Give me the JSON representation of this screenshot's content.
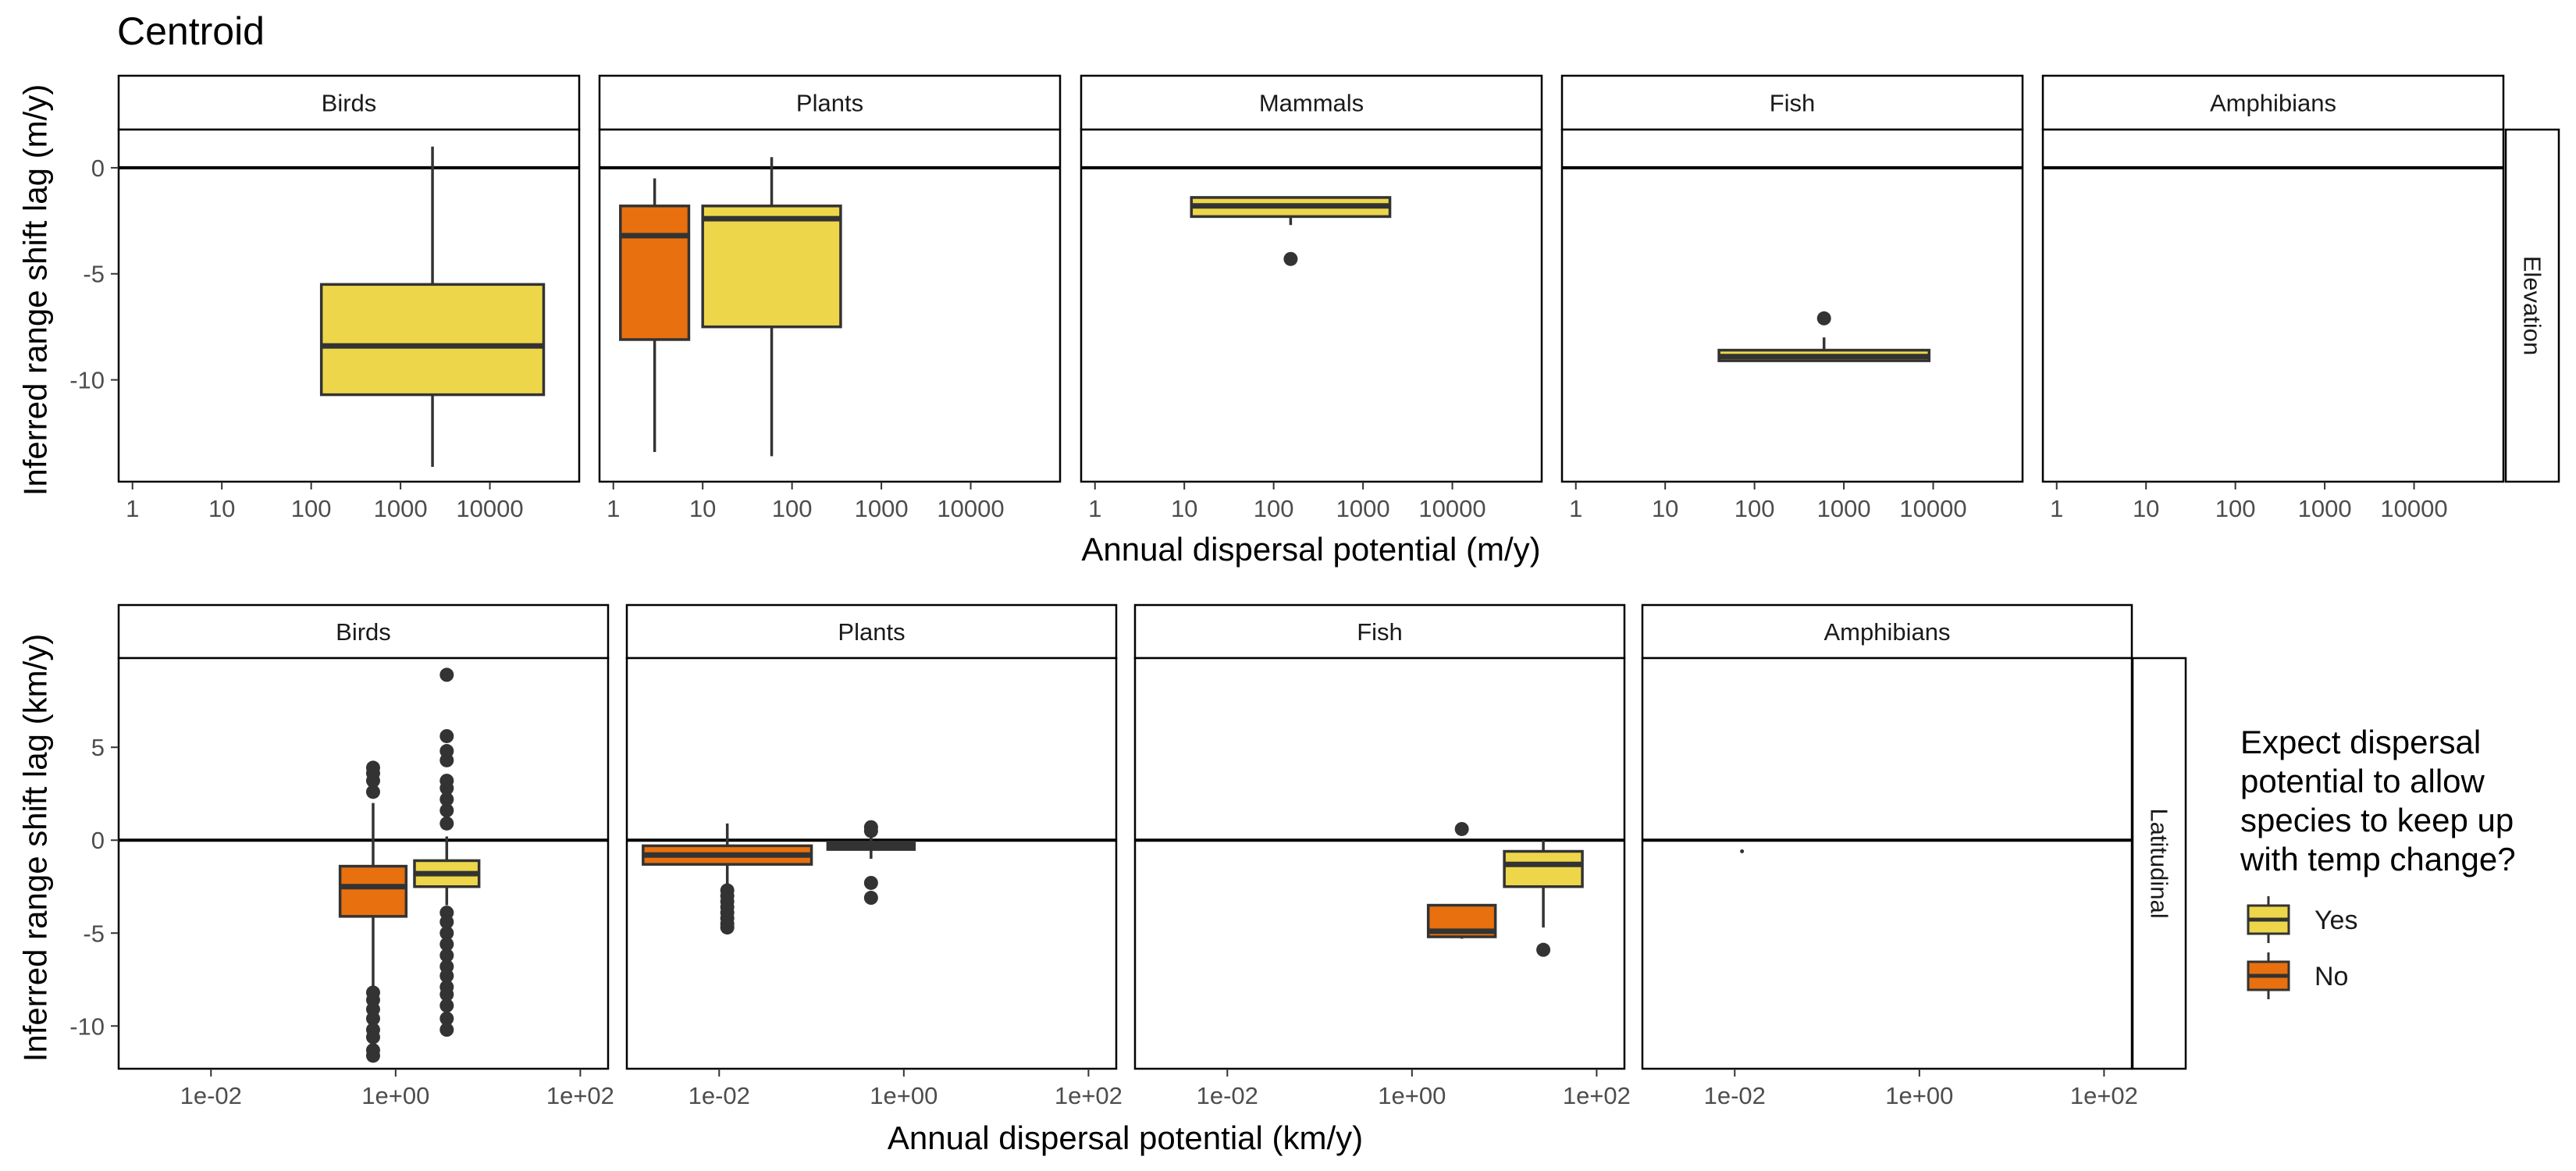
{
  "title": "Centroid",
  "colors": {
    "yes": "#EDD64A",
    "no": "#E8700E",
    "stroke": "#333333",
    "axis": "#000000",
    "tick_text": "#4d4d4d"
  },
  "legend": {
    "title_lines": [
      "Expect dispersal",
      "potential to allow",
      "species to keep up",
      "with temp change?"
    ],
    "items": [
      {
        "label": "Yes",
        "key": "yes"
      },
      {
        "label": "No",
        "key": "no"
      }
    ]
  },
  "chart_data": [
    {
      "type": "box",
      "strip_label": "Elevation",
      "xlabel": "Annual dispersal potential (m/y)",
      "ylabel": "Inferred range shift lag (m/y)",
      "x_scale": "log10",
      "xlim": [
        0.7,
        100000
      ],
      "x_ticks": [
        "1",
        "10",
        "100",
        "1000",
        "10000"
      ],
      "x_tick_values": [
        1,
        10,
        100,
        1000,
        10000
      ],
      "ylim": [
        -14.8,
        1.8
      ],
      "y_ticks": [
        "0",
        "-5",
        "-10"
      ],
      "y_tick_values": [
        0,
        -5,
        -10
      ],
      "reference_line_y": 0,
      "panels": [
        {
          "label": "Birds",
          "boxes": [
            {
              "group": "yes",
              "x_min": 130,
              "x_max": 40000,
              "q1": -10.7,
              "median": -8.4,
              "q3": -5.5,
              "whisker_low": -14.1,
              "whisker_high": 1.0,
              "outliers": []
            }
          ]
        },
        {
          "label": "Plants",
          "boxes": [
            {
              "group": "no",
              "x_min": 1.2,
              "x_max": 7,
              "q1": -8.1,
              "median": -3.2,
              "q3": -1.8,
              "whisker_low": -13.4,
              "whisker_high": -0.5,
              "outliers": []
            },
            {
              "group": "yes",
              "x_min": 10,
              "x_max": 350,
              "q1": -7.5,
              "median": -2.4,
              "q3": -1.8,
              "whisker_low": -13.6,
              "whisker_high": 0.5,
              "outliers": []
            }
          ]
        },
        {
          "label": "Mammals",
          "boxes": [
            {
              "group": "yes",
              "x_min": 12,
              "x_max": 2000,
              "q1": -2.3,
              "median": -1.8,
              "q3": -1.4,
              "whisker_low": -2.7,
              "whisker_high": -1.4,
              "outliers": [
                -4.3
              ]
            }
          ]
        },
        {
          "label": "Fish",
          "boxes": [
            {
              "group": "yes",
              "x_min": 40,
              "x_max": 9000,
              "q1": -9.1,
              "median": -8.9,
              "q3": -8.6,
              "whisker_low": -9.1,
              "whisker_high": -8.0,
              "outliers": [
                -7.1
              ]
            }
          ]
        },
        {
          "label": "Amphibians",
          "boxes": []
        }
      ]
    },
    {
      "type": "box",
      "strip_label": "Latitudinal",
      "xlabel": "Annual dispersal potential (km/y)",
      "ylabel": "Inferred range shift lag (km/y)",
      "x_scale": "log10",
      "xlim": [
        0.001,
        200
      ],
      "x_ticks": [
        "1e-02",
        "1e+00",
        "1e+02"
      ],
      "x_tick_values": [
        0.01,
        1,
        100
      ],
      "ylim": [
        -12.3,
        9.8
      ],
      "y_ticks": [
        "5",
        "0",
        "-5",
        "-10"
      ],
      "y_tick_values": [
        5,
        0,
        -5,
        -10
      ],
      "reference_line_y": 0,
      "panels": [
        {
          "label": "Birds",
          "boxes": [
            {
              "group": "no",
              "x_min": 0.25,
              "x_max": 1.3,
              "q1": -4.1,
              "median": -2.5,
              "q3": -1.4,
              "whisker_low": -8.0,
              "whisker_high": 2.0,
              "outliers": [
                2.6,
                3.2,
                3.6,
                3.9,
                -8.2,
                -8.6,
                -9.1,
                -9.6,
                -10.2,
                -10.6,
                -11.3,
                -11.6
              ]
            },
            {
              "group": "yes",
              "x_min": 1.6,
              "x_max": 8,
              "q1": -2.5,
              "median": -1.8,
              "q3": -1.1,
              "whisker_low": -3.5,
              "whisker_high": 0.2,
              "outliers": [
                8.9,
                5.6,
                4.8,
                4.3,
                3.2,
                2.8,
                2.2,
                1.6,
                0.9,
                -3.9,
                -4.4,
                -5.0,
                -5.6,
                -6.2,
                -6.8,
                -7.3,
                -7.9,
                -8.3,
                -8.9,
                -9.6,
                -10.2
              ]
            }
          ]
        },
        {
          "label": "Plants",
          "boxes": [
            {
              "group": "no",
              "x_min": 0.0015,
              "x_max": 0.1,
              "q1": -1.3,
              "median": -0.8,
              "q3": -0.3,
              "whisker_low": -2.5,
              "whisker_high": 0.9,
              "outliers": [
                -2.7,
                -3.0,
                -3.3,
                -3.6,
                -3.9,
                -4.2,
                -4.5,
                -4.7
              ]
            },
            {
              "group": "yes",
              "x_min": 0.15,
              "x_max": 1.3,
              "q1": -0.5,
              "median": -0.3,
              "q3": -0.1,
              "whisker_low": -1.0,
              "whisker_high": 0.3,
              "outliers": [
                0.7,
                0.5,
                -2.3,
                -3.1
              ]
            }
          ]
        },
        {
          "label": "Fish",
          "boxes": [
            {
              "group": "no",
              "x_min": 1.5,
              "x_max": 8,
              "q1": -5.2,
              "median": -4.9,
              "q3": -3.5,
              "whisker_low": -5.3,
              "whisker_high": -3.5,
              "outliers": [
                0.6
              ]
            },
            {
              "group": "yes",
              "x_min": 10,
              "x_max": 70,
              "q1": -2.5,
              "median": -1.3,
              "q3": -0.6,
              "whisker_low": -4.7,
              "whisker_high": 0.0,
              "outliers": [
                -5.9
              ]
            }
          ]
        },
        {
          "label": "Amphibians",
          "boxes": [],
          "points": [
            {
              "x": 0.012,
              "y": -0.6
            }
          ]
        }
      ]
    }
  ]
}
